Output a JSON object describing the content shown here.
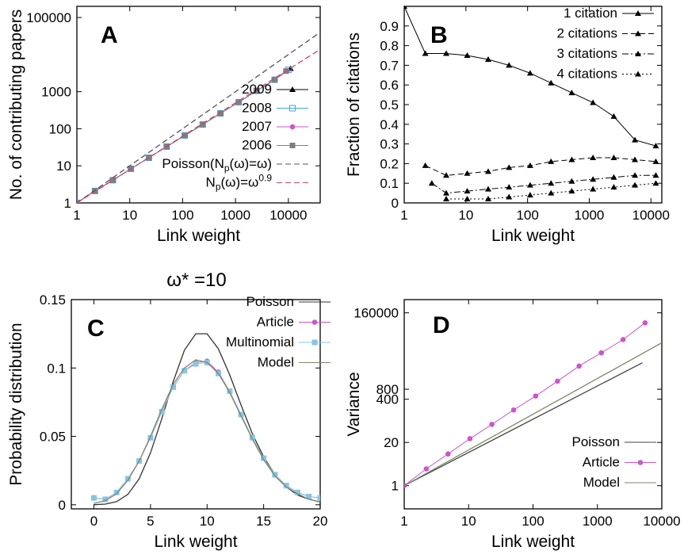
{
  "chart_data": [
    {
      "panel": "A",
      "type": "line",
      "title": "",
      "xlabel": "Link weight",
      "ylabel": "No. of contributing papers",
      "xscale": "log",
      "yscale": "log",
      "xlim": [
        1,
        40000
      ],
      "ylim": [
        1,
        200000
      ],
      "xticks": [
        1,
        10,
        100,
        1000,
        10000
      ],
      "xtick_labels": [
        "1",
        "10",
        "100",
        "1000",
        "10000"
      ],
      "yticks": [
        1,
        10,
        100,
        1000,
        100000
      ],
      "ytick_labels": [
        "1",
        "10",
        "100",
        "1000",
        "100000"
      ],
      "legend_position": "bottom-right",
      "grid": false,
      "series": [
        {
          "name": "2009",
          "marker": "triangle",
          "color": "#000000",
          "x": [
            1,
            2.2,
            4.8,
            10.5,
            23,
            50,
            110,
            240,
            520,
            1150,
            2500,
            5500,
            11000
          ],
          "y": [
            1,
            2.1,
            4.1,
            8.3,
            16.5,
            33,
            66,
            130,
            260,
            520,
            1050,
            2100,
            4200
          ]
        },
        {
          "name": "2008",
          "marker": "open-square",
          "color": "#3aa9e0",
          "x": [
            1,
            2.2,
            4.8,
            10.5,
            23,
            50,
            110,
            240,
            520,
            1150,
            2500,
            5500,
            10000
          ],
          "y": [
            1,
            2.1,
            4.1,
            8.3,
            16.5,
            33,
            66,
            130,
            260,
            520,
            1050,
            2100,
            3900
          ]
        },
        {
          "name": "2007",
          "marker": "circle",
          "color": "#cc55cc",
          "x": [
            1,
            2.2,
            4.8,
            10.5,
            23,
            50,
            110,
            240,
            520,
            1150,
            2500,
            5500,
            9500
          ],
          "y": [
            1,
            2.1,
            4.1,
            8.3,
            16.5,
            33,
            66,
            130,
            260,
            520,
            1050,
            2100,
            3700
          ]
        },
        {
          "name": "2006",
          "marker": "filled-square",
          "color": "#7f7f7f",
          "x": [
            1,
            2.2,
            4.8,
            10.5,
            23,
            50,
            110,
            240,
            520,
            1150,
            2500,
            5500,
            9000
          ],
          "y": [
            1,
            2.1,
            4.1,
            8.3,
            16.5,
            33,
            66,
            130,
            260,
            520,
            1050,
            2100,
            3600
          ]
        },
        {
          "name": "Poisson(N_p(ω)=ω)",
          "marker": "none",
          "style": "dashed",
          "color": "#555555",
          "x": [
            1,
            40000
          ],
          "y": [
            1,
            40000
          ]
        },
        {
          "name": "N_p(ω)=ω^0.9",
          "marker": "none",
          "style": "dashed",
          "color": "#cc4477",
          "x": [
            1,
            40000
          ],
          "y": [
            1,
            13800
          ]
        }
      ],
      "legend": [
        {
          "name": "2009"
        },
        {
          "name": "2008"
        },
        {
          "name": "2007"
        },
        {
          "name": "2006"
        },
        {
          "name": "Poisson(N",
          "sub": "p",
          "rest": "(ω)=ω)"
        },
        {
          "name": "N",
          "sub": "p",
          "rest": "(ω)=ω",
          "sup": "0.9"
        }
      ]
    },
    {
      "panel": "B",
      "type": "line",
      "title": "",
      "xlabel": "Link weight",
      "ylabel": "Fraction of citations",
      "xscale": "log",
      "yscale": "linear",
      "xlim": [
        1,
        15000
      ],
      "ylim": [
        0,
        1
      ],
      "xticks": [
        1,
        10,
        100,
        1000,
        10000
      ],
      "xtick_labels": [
        "1",
        "10",
        "100",
        "1000",
        "10000"
      ],
      "yticks": [
        0,
        0.1,
        0.2,
        0.3,
        0.4,
        0.5,
        0.6,
        0.7,
        0.8,
        0.9
      ],
      "ytick_labels": [
        "0",
        "0.1",
        "0.2",
        "0.3",
        "0.4",
        "0.5",
        "0.6",
        "0.7",
        "0.8",
        "0.9"
      ],
      "legend_position": "top-right",
      "grid": false,
      "series": [
        {
          "name": "1 citation",
          "style": "solid",
          "marker": "triangle",
          "x": [
            1,
            2.2,
            4.8,
            10.5,
            23,
            50,
            110,
            240,
            520,
            1150,
            2500,
            5500,
            12000
          ],
          "y": [
            1.0,
            0.76,
            0.76,
            0.75,
            0.73,
            0.7,
            0.66,
            0.61,
            0.56,
            0.51,
            0.44,
            0.32,
            0.29
          ]
        },
        {
          "name": "2 citations",
          "style": "dashed",
          "marker": "triangle",
          "x": [
            2.2,
            4.8,
            10.5,
            23,
            50,
            110,
            240,
            520,
            1150,
            2500,
            5500,
            12000
          ],
          "y": [
            0.19,
            0.14,
            0.15,
            0.16,
            0.18,
            0.19,
            0.21,
            0.22,
            0.23,
            0.23,
            0.22,
            0.21
          ]
        },
        {
          "name": "3 citations",
          "style": "dash-dot",
          "marker": "triangle",
          "x": [
            2.8,
            4.8,
            10.5,
            23,
            50,
            110,
            240,
            520,
            1150,
            2500,
            5500,
            12000
          ],
          "y": [
            0.1,
            0.05,
            0.06,
            0.07,
            0.08,
            0.09,
            0.1,
            0.11,
            0.12,
            0.13,
            0.14,
            0.14
          ]
        },
        {
          "name": "4 citations",
          "style": "dotted",
          "marker": "triangle",
          "x": [
            4.8,
            10.5,
            23,
            50,
            110,
            240,
            520,
            1150,
            2500,
            5500,
            12000
          ],
          "y": [
            0.02,
            0.02,
            0.02,
            0.03,
            0.04,
            0.05,
            0.06,
            0.07,
            0.08,
            0.09,
            0.1
          ]
        }
      ]
    },
    {
      "panel": "C",
      "type": "line",
      "title": "ω* =10",
      "xlabel": "Link weight",
      "ylabel": "Probability distribution",
      "xscale": "linear",
      "yscale": "linear",
      "xlim": [
        -2,
        20
      ],
      "ylim": [
        -0.003,
        0.15
      ],
      "xticks": [
        0,
        5,
        10,
        15,
        20
      ],
      "xtick_labels": [
        "0",
        "5",
        "10",
        "15",
        "20"
      ],
      "yticks": [
        0,
        0.05,
        0.1,
        0.15
      ],
      "ytick_labels": [
        "0",
        "0.05",
        "0.1",
        "0.15"
      ],
      "legend_position": "top-right",
      "grid": false,
      "series": [
        {
          "name": "Poisson",
          "style": "solid",
          "marker": "none",
          "color": "#333333",
          "x": [
            0,
            1,
            2,
            3,
            4,
            5,
            6,
            7,
            8,
            9,
            10,
            11,
            12,
            13,
            14,
            15,
            16,
            17,
            18,
            19,
            20
          ],
          "y": [
            0.0,
            0.0005,
            0.0023,
            0.0076,
            0.019,
            0.038,
            0.063,
            0.09,
            0.113,
            0.125,
            0.125,
            0.114,
            0.095,
            0.073,
            0.052,
            0.035,
            0.022,
            0.013,
            0.007,
            0.004,
            0.002
          ]
        },
        {
          "name": "Article",
          "style": "solid",
          "marker": "circle",
          "color": "#cc55cc",
          "x": [
            0,
            1,
            2,
            3,
            4,
            5,
            6,
            7,
            8,
            9,
            10,
            11,
            12,
            13,
            14,
            15,
            16,
            17,
            18,
            19,
            20
          ],
          "y": [
            0.005,
            0.004,
            0.009,
            0.019,
            0.032,
            0.049,
            0.068,
            0.086,
            0.098,
            0.104,
            0.105,
            0.097,
            0.083,
            0.066,
            0.049,
            0.034,
            0.022,
            0.014,
            0.009,
            0.006,
            0.005
          ]
        },
        {
          "name": "Multinomial",
          "style": "solid",
          "marker": "filled-square",
          "color": "#88c4e4",
          "x": [
            0,
            1,
            2,
            3,
            4,
            5,
            6,
            7,
            8,
            9,
            10,
            11,
            12,
            13,
            14,
            15,
            16,
            17,
            18,
            19,
            20
          ],
          "y": [
            0.005,
            0.004,
            0.009,
            0.019,
            0.032,
            0.049,
            0.068,
            0.086,
            0.098,
            0.103,
            0.104,
            0.096,
            0.083,
            0.066,
            0.049,
            0.034,
            0.022,
            0.014,
            0.009,
            0.006,
            0.005
          ]
        },
        {
          "name": "Model",
          "style": "solid",
          "marker": "none",
          "color": "#7a8a6a",
          "x": [
            0,
            1,
            2,
            3,
            4,
            5,
            6,
            7,
            8,
            9,
            10,
            11,
            12,
            13,
            14,
            15,
            16,
            17,
            18,
            19,
            20
          ],
          "y": [
            0.001,
            0.003,
            0.008,
            0.018,
            0.032,
            0.05,
            0.07,
            0.088,
            0.1,
            0.106,
            0.104,
            0.096,
            0.082,
            0.065,
            0.048,
            0.033,
            0.021,
            0.013,
            0.008,
            0.004,
            0.002
          ]
        }
      ]
    },
    {
      "panel": "D",
      "type": "line",
      "title": "",
      "xlabel": "Link weight",
      "ylabel": "Variance",
      "xscale": "log",
      "yscale": "log",
      "xlim": [
        1,
        10000
      ],
      "ylim": [
        0.2,
        400000
      ],
      "xticks": [
        1,
        10,
        100,
        1000,
        10000
      ],
      "xtick_labels": [
        "1",
        "10",
        "100",
        "1000",
        "10000"
      ],
      "yticks": [
        1,
        20,
        400,
        800,
        160000
      ],
      "ytick_labels": [
        "1",
        "20",
        "400",
        "800",
        "160000"
      ],
      "legend_position": "bottom-right",
      "grid": false,
      "series": [
        {
          "name": "Poisson",
          "style": "solid",
          "marker": "none",
          "color": "#444444",
          "x": [
            1,
            5000
          ],
          "y": [
            1,
            5000
          ]
        },
        {
          "name": "Article",
          "style": "solid",
          "marker": "circle",
          "color": "#cc55cc",
          "x": [
            1,
            2.2,
            4.8,
            10.5,
            23,
            50,
            110,
            240,
            520,
            1150,
            2500,
            5500
          ],
          "y": [
            1,
            3.2,
            9,
            26,
            70,
            190,
            500,
            1400,
            4000,
            10000,
            25000,
            80000
          ]
        },
        {
          "name": "Model",
          "style": "solid",
          "marker": "none",
          "color": "#7a8a6a",
          "x": [
            1,
            10000
          ],
          "y": [
            1,
            20000
          ]
        }
      ]
    }
  ]
}
